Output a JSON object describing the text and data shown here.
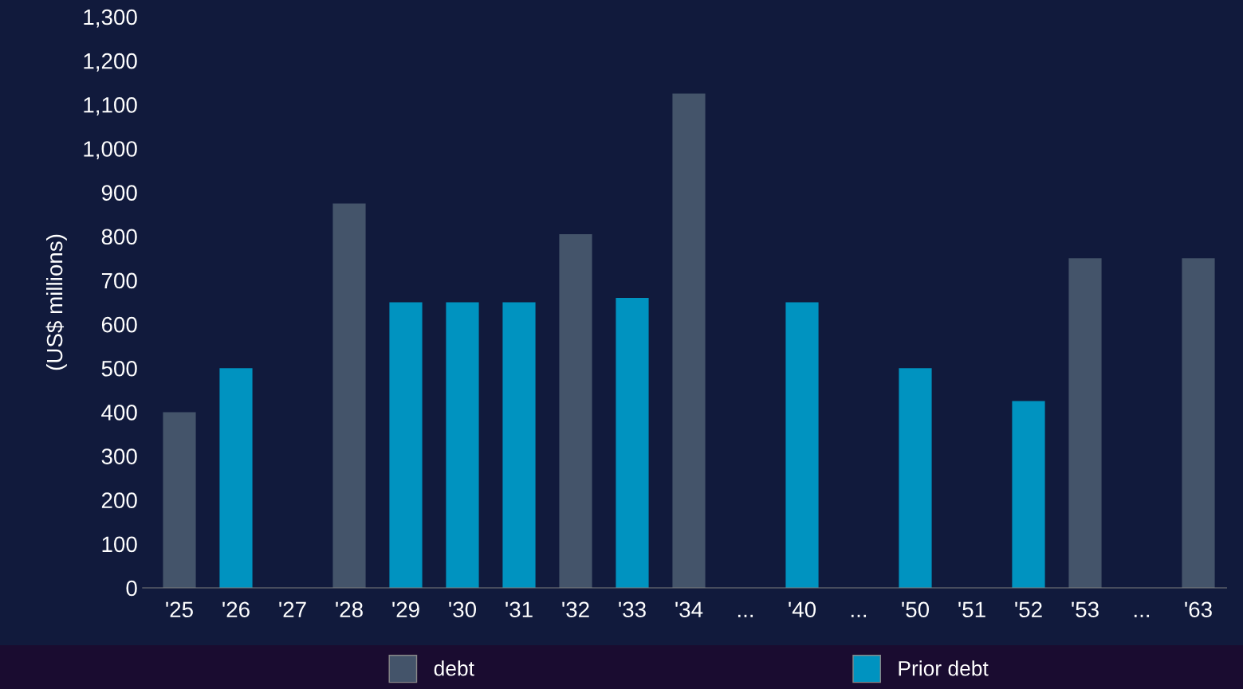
{
  "chart_data": {
    "type": "bar",
    "ylabel": "(US$ millions)",
    "categories": [
      "'25",
      "'26",
      "'27",
      "'28",
      "'29",
      "'30",
      "'31",
      "'32",
      "'33",
      "'34",
      "...",
      "'40",
      "...",
      "'50",
      "'51",
      "'52",
      "'53",
      "...",
      "'63"
    ],
    "series": [
      {
        "name": "debt",
        "color": "#44546a",
        "values": [
          400,
          null,
          null,
          875,
          null,
          null,
          null,
          805,
          null,
          1125,
          null,
          null,
          null,
          null,
          null,
          null,
          750,
          null,
          750
        ]
      },
      {
        "name": "Prior debt",
        "color": "#0093c0",
        "values": [
          null,
          500,
          null,
          null,
          650,
          650,
          650,
          null,
          660,
          null,
          null,
          650,
          null,
          500,
          null,
          425,
          null,
          null,
          null
        ]
      }
    ],
    "ylim": [
      0,
      1300
    ],
    "yticks": [
      0,
      {
        "value": 100,
        "label": "100"
      },
      200,
      300,
      400,
      500,
      600,
      700,
      800,
      900,
      {
        "value": 1000,
        "label": "1,000"
      },
      {
        "value": 1100,
        "label": "1,100"
      },
      {
        "value": 1200,
        "label": "1,200"
      },
      {
        "value": 1300,
        "label": "1,300"
      }
    ],
    "grid": false,
    "legend": "bottom"
  }
}
